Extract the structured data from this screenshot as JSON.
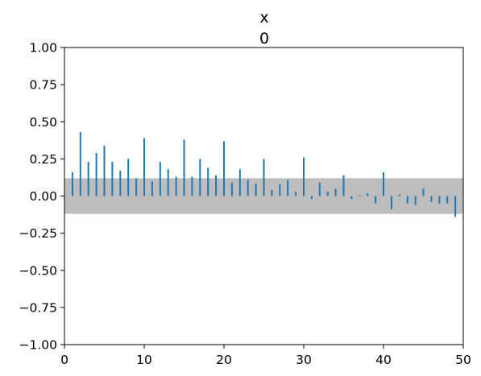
{
  "chart_data": {
    "type": "bar",
    "title_lines": [
      "x",
      "0"
    ],
    "xlabel": "",
    "ylabel": "",
    "xlim": [
      0,
      50
    ],
    "ylim": [
      -1.0,
      1.0
    ],
    "x_ticks": [
      0,
      10,
      20,
      30,
      40,
      50
    ],
    "x_tick_labels": [
      "0",
      "10",
      "20",
      "30",
      "40",
      "50"
    ],
    "y_ticks": [
      1.0,
      0.75,
      0.5,
      0.25,
      0.0,
      -0.25,
      -0.5,
      -0.75,
      -1.0
    ],
    "y_tick_labels": [
      "1.00",
      "0.75",
      "0.50",
      "0.25",
      "0.00",
      "−0.25",
      "−0.50",
      "−0.75",
      "−1.00"
    ],
    "confidence_band": [
      -0.12,
      0.12
    ],
    "grid": false,
    "legend": "none",
    "x": [
      1,
      2,
      3,
      4,
      5,
      6,
      7,
      8,
      9,
      10,
      11,
      12,
      13,
      14,
      15,
      16,
      17,
      18,
      19,
      20,
      21,
      22,
      23,
      24,
      25,
      26,
      27,
      28,
      29,
      30,
      31,
      32,
      33,
      34,
      35,
      36,
      37,
      38,
      39,
      40,
      41,
      42,
      43,
      44,
      45,
      46,
      47,
      48,
      49
    ],
    "values": [
      0.16,
      0.43,
      0.23,
      0.29,
      0.34,
      0.23,
      0.17,
      0.25,
      0.12,
      0.39,
      0.1,
      0.23,
      0.18,
      0.13,
      0.38,
      0.13,
      0.25,
      0.19,
      0.14,
      0.37,
      0.09,
      0.18,
      0.11,
      0.08,
      0.25,
      0.04,
      0.08,
      0.11,
      0.03,
      0.26,
      -0.02,
      0.09,
      0.03,
      0.05,
      0.14,
      -0.02,
      0.0,
      0.02,
      -0.05,
      0.16,
      -0.09,
      0.01,
      -0.05,
      -0.06,
      0.05,
      -0.04,
      -0.05,
      -0.05,
      -0.14
    ]
  },
  "colors": {
    "bar": "#1f77b4",
    "band": "#bdbdbd",
    "axis": "#000000",
    "background": "#ffffff"
  }
}
